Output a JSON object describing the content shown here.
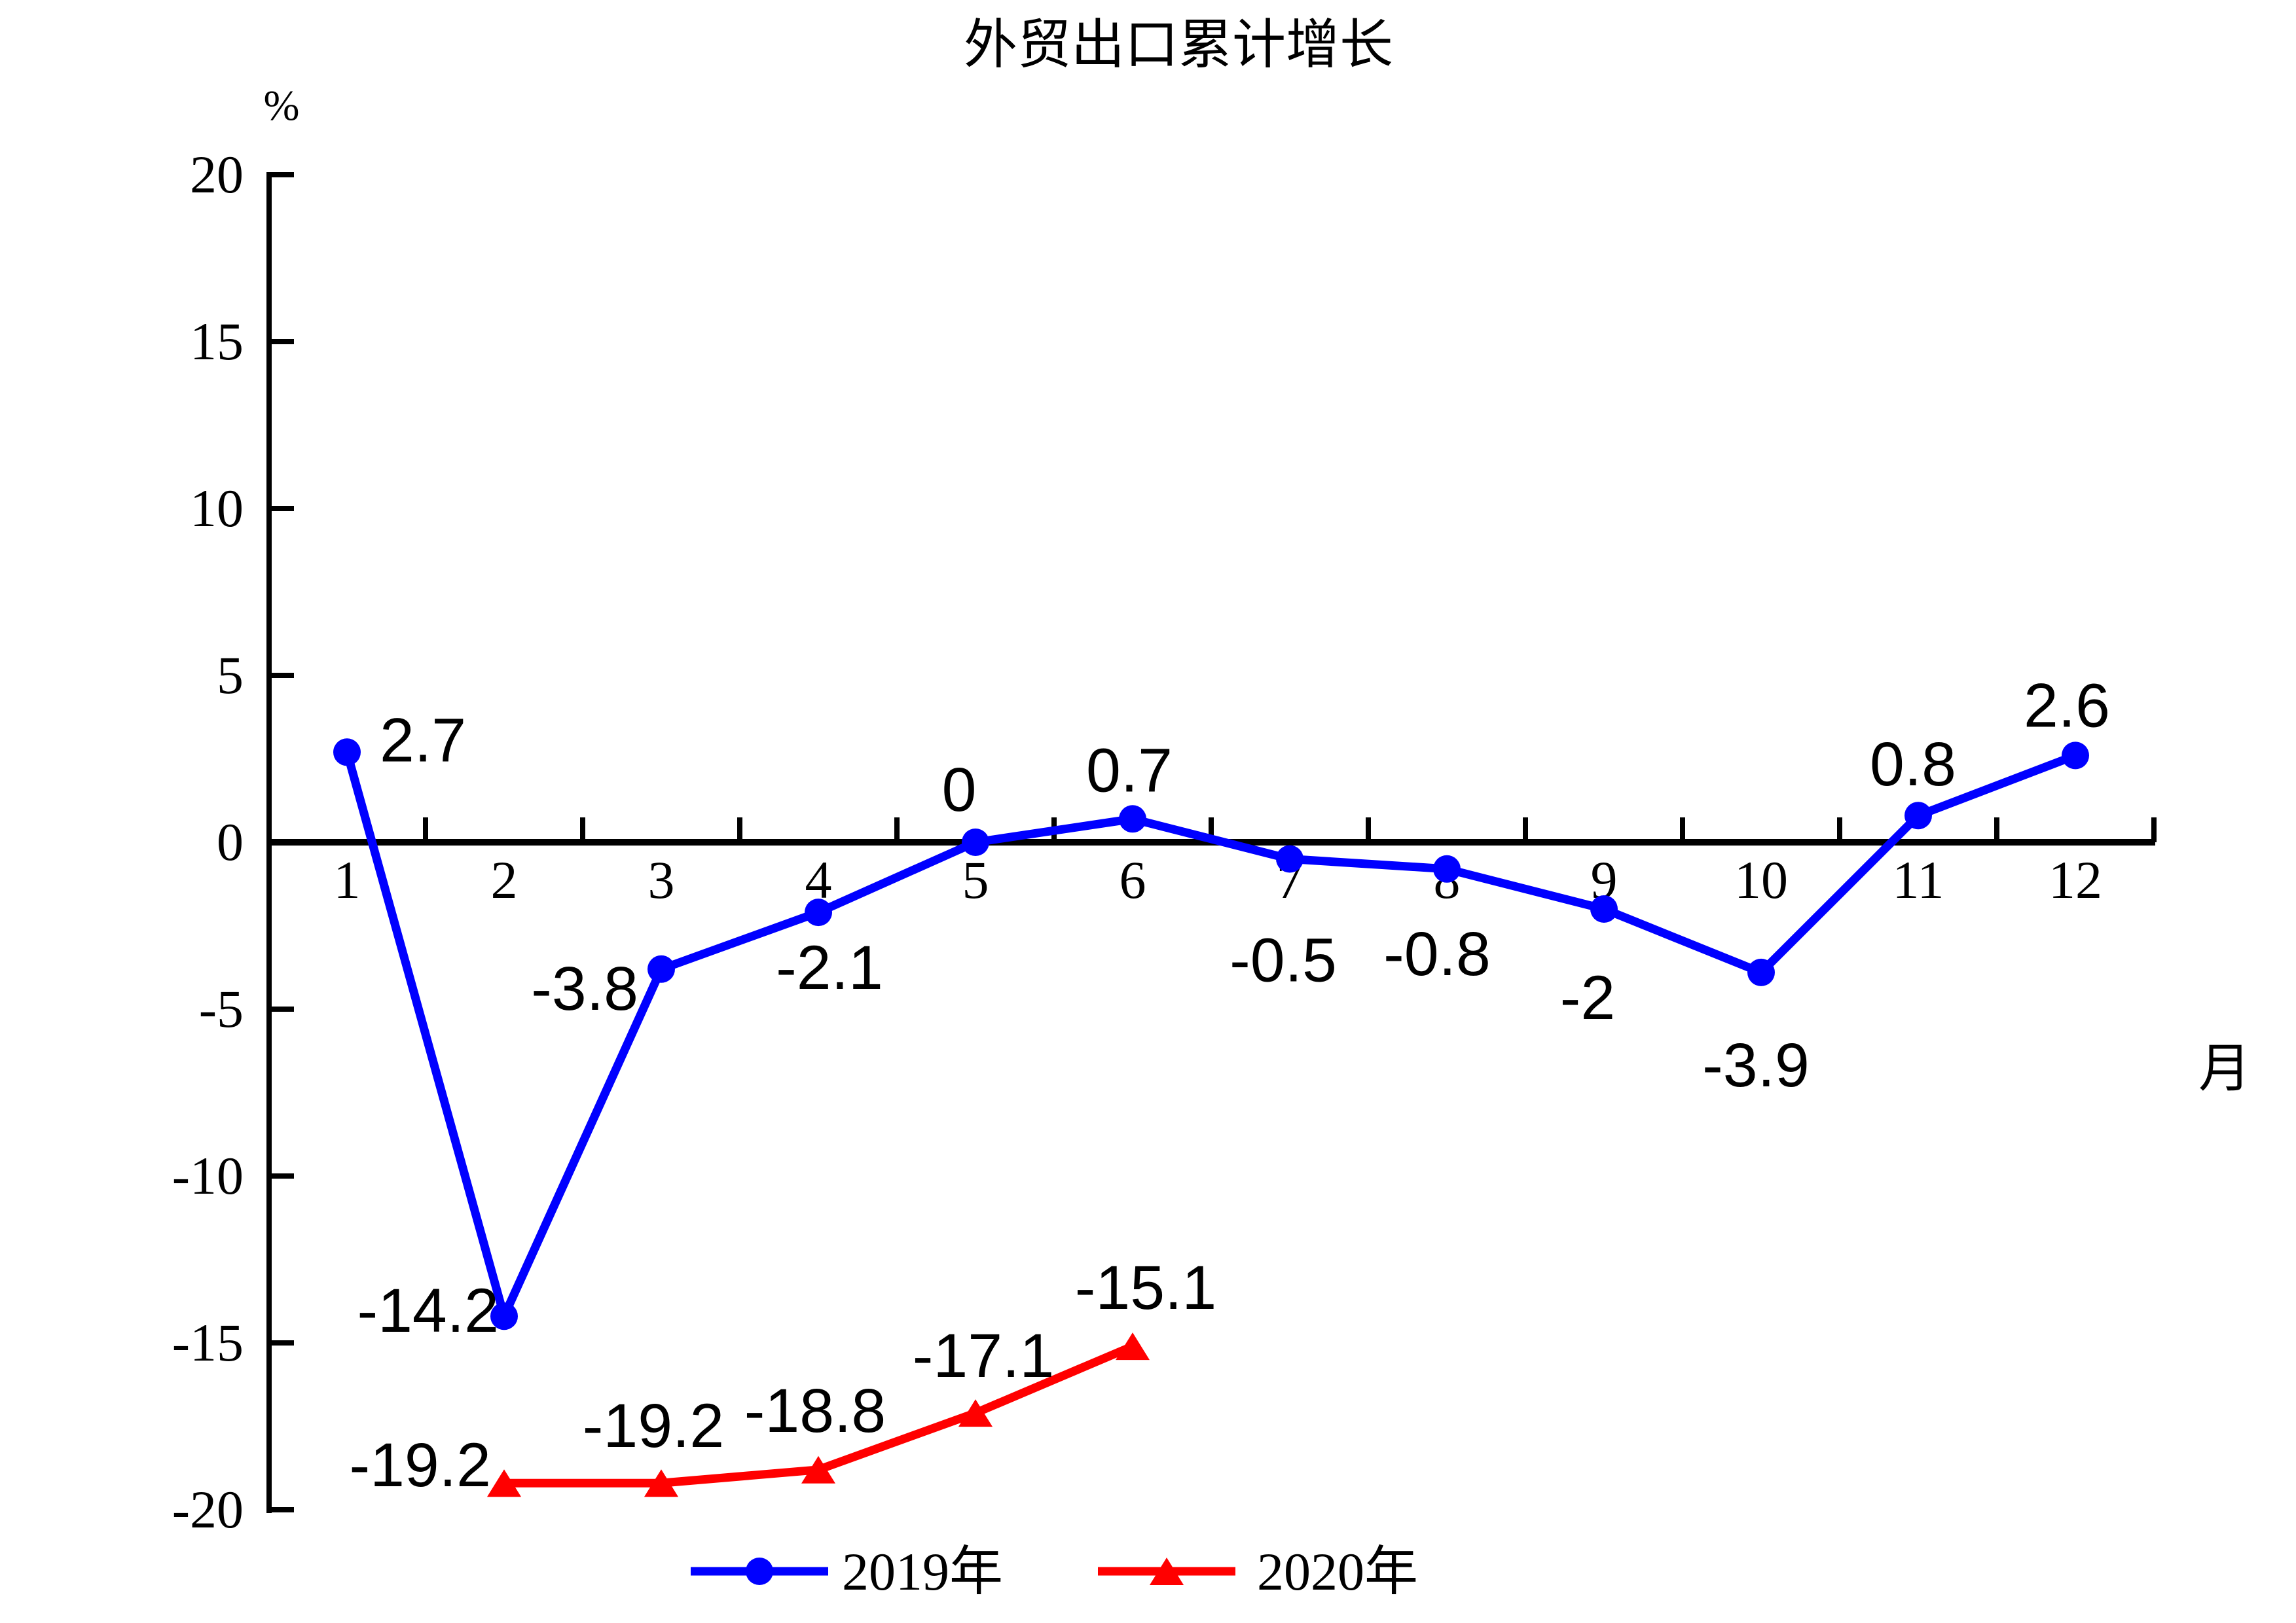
{
  "title": "外贸出口累计增长",
  "y_axis": {
    "unit_label": "%",
    "ticks": [
      20,
      15,
      10,
      5,
      0,
      -5,
      -10,
      -15,
      -20
    ],
    "max": 20,
    "min": -20
  },
  "x_axis": {
    "label": "月",
    "categories": [
      "1",
      "2",
      "3",
      "4",
      "5",
      "6",
      "7",
      "8",
      "9",
      "10",
      "11",
      "12"
    ]
  },
  "legend": [
    {
      "label": "2019年",
      "color": "#0000ff",
      "marker": "circle"
    },
    {
      "label": "2020年",
      "color": "#ff0000",
      "marker": "triangle"
    }
  ],
  "colors": {
    "series_2019": "#0000ff",
    "series_2020": "#ff0000",
    "axis": "#000000",
    "background": "#ffffff"
  },
  "chart_data": {
    "type": "line",
    "title": "外贸出口累计增长",
    "xlabel": "月",
    "ylabel": "%",
    "ylim": [
      -20,
      20
    ],
    "y_tick_step": 5,
    "grid": false,
    "legend_position": "bottom",
    "x": [
      1,
      2,
      3,
      4,
      5,
      6,
      7,
      8,
      9,
      10,
      11,
      12
    ],
    "series": [
      {
        "name": "2019年",
        "color": "#0000ff",
        "marker": "circle",
        "values": [
          2.7,
          -14.2,
          -3.8,
          -2.1,
          0,
          0.7,
          -0.5,
          -0.8,
          -2,
          -3.9,
          0.8,
          2.6
        ],
        "labels": [
          "2.7",
          "-14.2",
          "-3.8",
          "-2.1",
          "0",
          "0.7",
          "-0.5",
          "-0.8",
          "-2",
          "-3.9",
          "0.8",
          "2.6"
        ]
      },
      {
        "name": "2020年",
        "color": "#ff0000",
        "marker": "triangle",
        "values": [
          null,
          -19.2,
          -19.2,
          -18.8,
          -17.1,
          -15.1,
          null,
          null,
          null,
          null,
          null,
          null
        ],
        "labels": [
          null,
          "-19.2",
          "-19.2",
          "-18.8",
          "-17.1",
          "-15.1",
          null,
          null,
          null,
          null,
          null,
          null
        ]
      }
    ]
  }
}
